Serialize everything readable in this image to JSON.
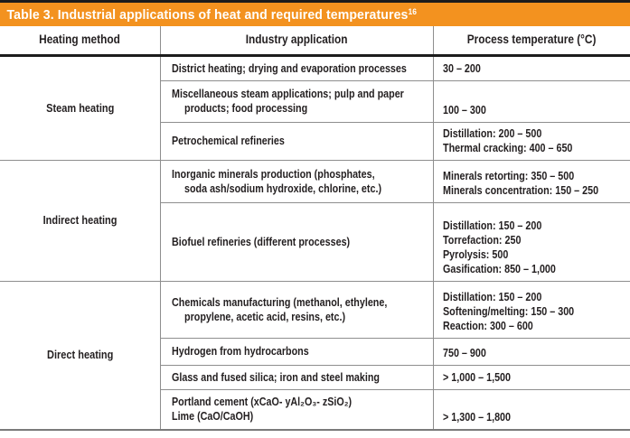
{
  "title": {
    "text": "Table 3. Industrial applications of heat and required temperatures",
    "reference": "16"
  },
  "header": {
    "columns": [
      "Heating method",
      "Industry application",
      "Process temperature (°C)"
    ]
  },
  "sections": [
    {
      "method": "Steam heating",
      "rows": [
        {
          "application": [
            {
              "text": "District heating; drying and evaporation processes",
              "indent": false
            }
          ],
          "temperature": [
            "30 – 200"
          ]
        },
        {
          "application": [
            {
              "text": "Miscellaneous steam applications; pulp and paper",
              "indent": false
            },
            {
              "text": "products; food processing",
              "indent": true
            }
          ],
          "temperature": [
            "100 – 300"
          ]
        },
        {
          "application": [
            {
              "text": "Petrochemical refineries",
              "indent": false
            }
          ],
          "temperature": [
            "Distillation: 200 – 500",
            "Thermal cracking: 400 – 650"
          ]
        }
      ]
    },
    {
      "method": "Indirect heating",
      "rows": [
        {
          "application": [
            {
              "text": "Inorganic minerals production (phosphates,",
              "indent": false
            },
            {
              "text": "soda ash/sodium hydroxide, chlorine, etc.)",
              "indent": true
            }
          ],
          "temperature": [
            "Minerals retorting: 350 – 500",
            "Minerals concentration: 150 – 250"
          ]
        },
        {
          "application": [
            {
              "text": "Biofuel refineries (different processes)",
              "indent": false
            }
          ],
          "temperature": [
            "Distillation: 150 – 200",
            "Torrefaction: 250",
            "Pyrolysis: 500",
            "Gasification: 850 – 1,000"
          ]
        }
      ]
    },
    {
      "method": "Direct heating",
      "rows": [
        {
          "application": [
            {
              "text": "Chemicals manufacturing (methanol, ethylene,",
              "indent": false
            },
            {
              "text": "propylene, acetic acid, resins, etc.)",
              "indent": true
            }
          ],
          "temperature": [
            "Distillation: 150 – 200",
            "Softening/melting: 150 – 300",
            "Reaction: 300 – 600"
          ]
        },
        {
          "application": [
            {
              "text": "Hydrogen from hydrocarbons",
              "indent": false
            }
          ],
          "temperature": [
            "750 – 900"
          ]
        },
        {
          "application": [
            {
              "text": "Glass and fused silica; iron and steel making",
              "indent": false
            }
          ],
          "temperature": [
            "> 1,000 – 1,500"
          ]
        },
        {
          "application": [
            {
              "text": "Portland cement (xCaO- yAl₂O₃- zSiO₂)",
              "indent": false
            },
            {
              "text": "Lime (CaO/CaOH)",
              "indent": false
            }
          ],
          "temperature": [
            "> 1,300 – 1,800"
          ]
        }
      ]
    }
  ],
  "colors": {
    "header_bar": "#F3921F",
    "title_text": "#FFFFFF",
    "body_text": "#231F20",
    "grid_line": "#8E8E8E",
    "bottom_border": "#7A7A7A",
    "heavy_line": "#1C1C1C"
  }
}
